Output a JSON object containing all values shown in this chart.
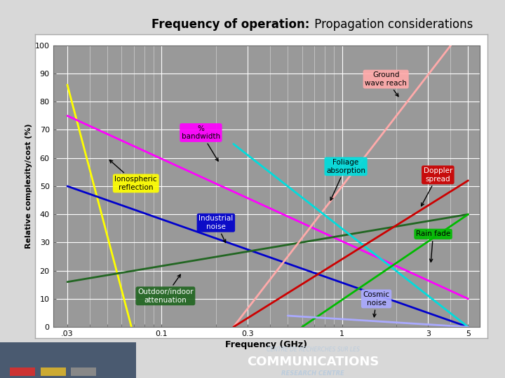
{
  "title_bold": "Frequency of operation:",
  "title_normal": " Propagation considerations",
  "xlabel": "Frequency (GHz)",
  "ylabel": "Relative complexity/cost (%)",
  "ylim": [
    0,
    100
  ],
  "yticks": [
    0,
    10,
    20,
    30,
    40,
    50,
    60,
    70,
    80,
    90,
    100
  ],
  "xtick_vals": [
    0.03,
    0.1,
    0.3,
    1,
    3,
    5
  ],
  "xtick_labels": [
    ".03",
    "0.1",
    "0.3",
    "1",
    "3",
    "5"
  ],
  "bg_color": "#999999",
  "outer_bg": "#d8d8d8",
  "lines": [
    {
      "name": "ionospheric_reflection",
      "color": "#ffff00",
      "x": [
        0.03,
        0.068
      ],
      "y": [
        86,
        0
      ],
      "lw": 2.0
    },
    {
      "name": "pct_bandwidth",
      "color": "#ff00ff",
      "x": [
        0.03,
        5.0
      ],
      "y": [
        75,
        10
      ],
      "lw": 2.0
    },
    {
      "name": "industrial_noise",
      "color": "#0000cc",
      "x": [
        0.03,
        5.0
      ],
      "y": [
        50,
        0
      ],
      "lw": 2.0
    },
    {
      "name": "outdoor_indoor",
      "color": "#226622",
      "x": [
        0.03,
        5.0
      ],
      "y": [
        16,
        40
      ],
      "lw": 2.0
    },
    {
      "name": "ground_wave",
      "color": "#ffaaaa",
      "x": [
        0.25,
        5.0
      ],
      "y": [
        0,
        108
      ],
      "lw": 2.0
    },
    {
      "name": "foliage_absorption",
      "color": "#00dddd",
      "x": [
        0.25,
        5.0
      ],
      "y": [
        65,
        0
      ],
      "lw": 2.0
    },
    {
      "name": "doppler_spread",
      "color": "#cc0000",
      "x": [
        0.25,
        5.0
      ],
      "y": [
        0,
        52
      ],
      "lw": 2.0
    },
    {
      "name": "rain_fade",
      "color": "#00bb00",
      "x": [
        0.6,
        5.0
      ],
      "y": [
        0,
        40
      ],
      "lw": 2.0
    },
    {
      "name": "cosmic_noise",
      "color": "#aaaaff",
      "x": [
        0.5,
        5.0
      ],
      "y": [
        4,
        0
      ],
      "lw": 2.0
    }
  ],
  "footer_bg": "#1a3a6b",
  "footer_left_bg": "#3a5070"
}
